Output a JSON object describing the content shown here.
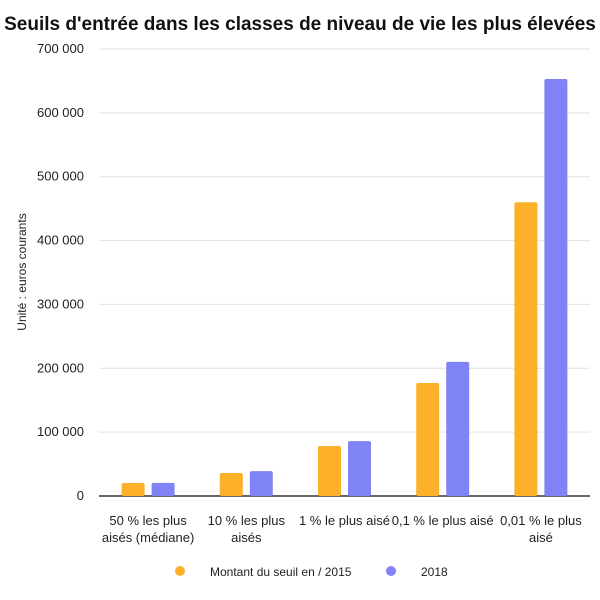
{
  "chart_data": {
    "type": "bar",
    "title": "Seuils d'entrée dans les classes de niveau de vie les plus élevées",
    "xlabel": "",
    "ylabel": "Unité : euros courants",
    "ylim": [
      0,
      700000
    ],
    "yticks": [
      0,
      100000,
      200000,
      300000,
      400000,
      500000,
      600000,
      700000
    ],
    "ytick_labels": [
      "0",
      "100 000",
      "200 000",
      "300 000",
      "400 000",
      "500 000",
      "600 000",
      "700 000"
    ],
    "grid": true,
    "legend_position": "bottom",
    "categories": [
      [
        "50 % les plus",
        "aisés (médiane)"
      ],
      [
        "10 % les plus",
        "aisés"
      ],
      [
        "1 % le plus aisé"
      ],
      [
        "0,1 % le plus aisé"
      ],
      [
        "0,01 % le plus",
        "aisé"
      ]
    ],
    "series": [
      {
        "name": "Montant du seuil en / 2015",
        "color": "#fdb02a",
        "values": [
          20300,
          36000,
          78300,
          177000,
          460000
        ]
      },
      {
        "name": "2018",
        "color": "#8083f5",
        "values": [
          20500,
          39000,
          86000,
          210000,
          653000
        ]
      }
    ]
  }
}
